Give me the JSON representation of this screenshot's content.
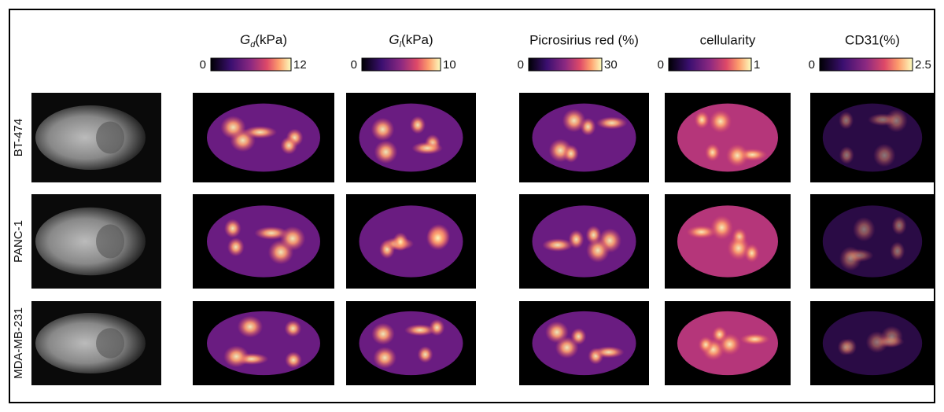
{
  "columns": [
    {
      "symbol": "G",
      "subscript": "d",
      "unit": "(kPa)",
      "min_label": "0",
      "max_label": "12"
    },
    {
      "symbol": "G",
      "subscript": "l",
      "unit": "(kPa)",
      "min_label": "0",
      "max_label": "10"
    },
    {
      "title": "Picrosirius red (%)",
      "min_label": "0",
      "max_label": "30"
    },
    {
      "title": "cellularity",
      "min_label": "0",
      "max_label": "1"
    },
    {
      "title": "CD31(%)",
      "min_label": "0",
      "max_label": "2.5"
    }
  ],
  "rows": [
    {
      "label": "BT-474"
    },
    {
      "label": "PANC-1"
    },
    {
      "label": "MDA-MB-231"
    }
  ]
}
